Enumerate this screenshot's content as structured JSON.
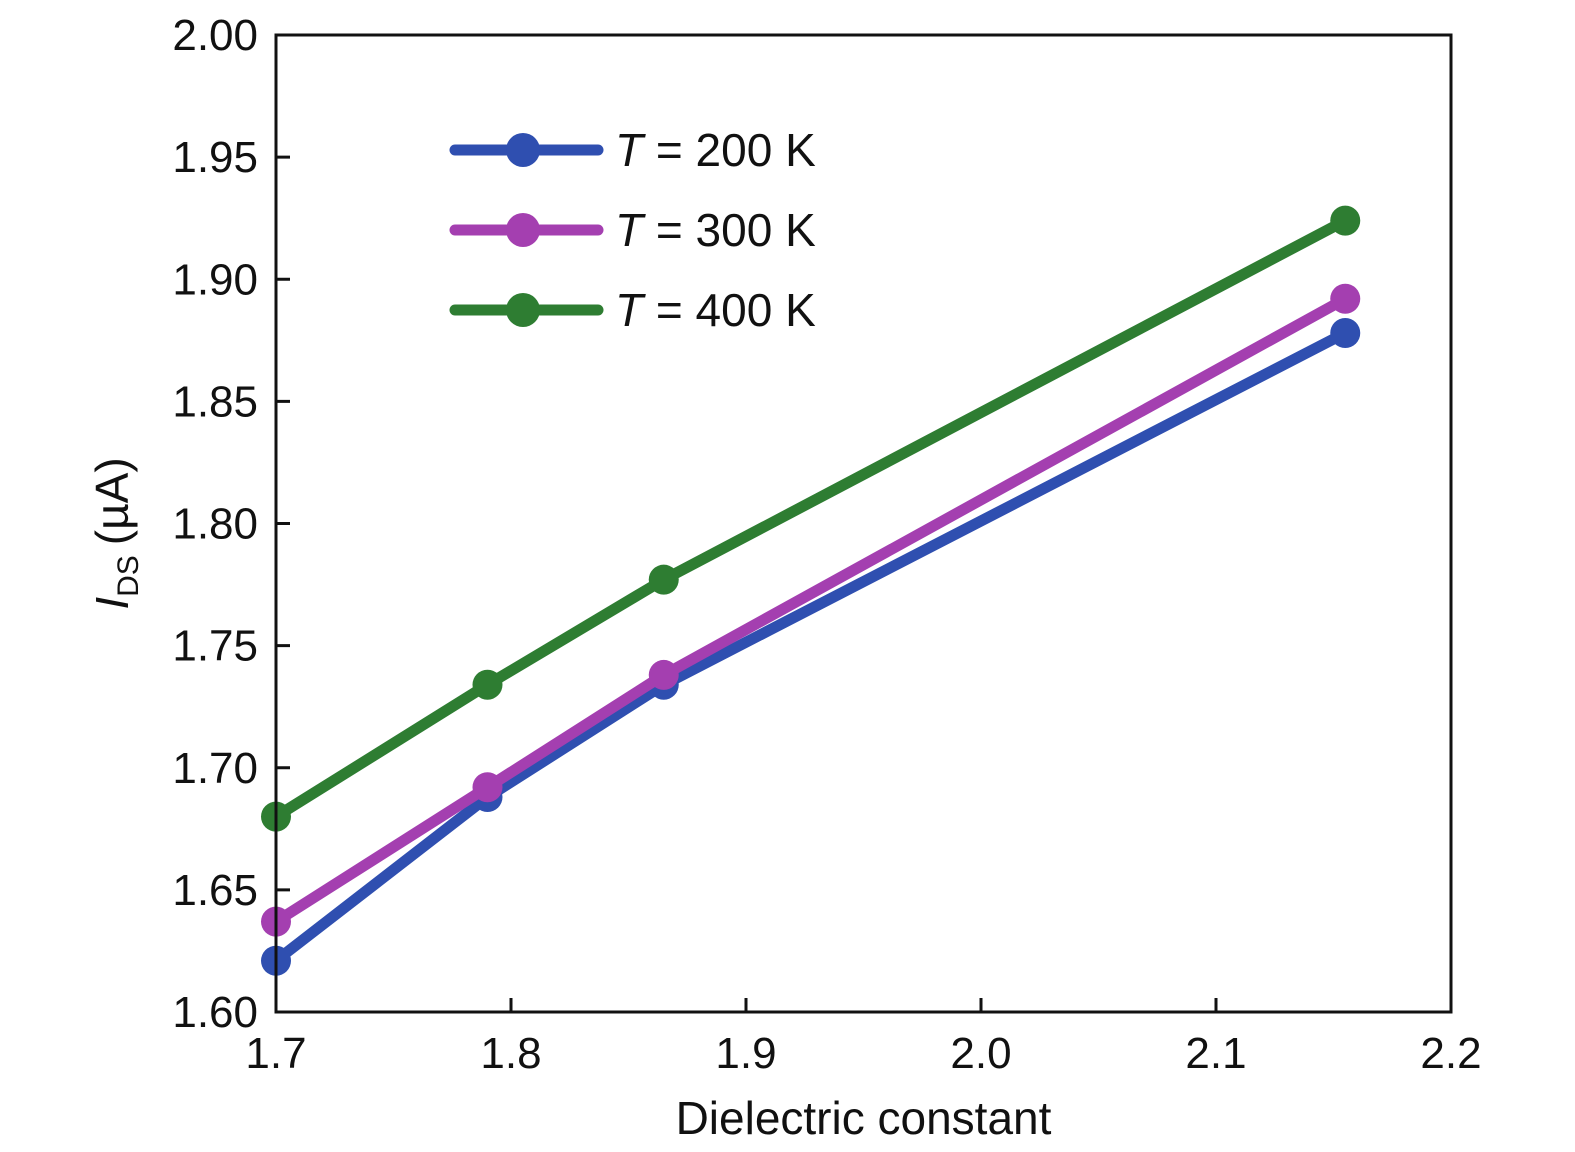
{
  "chart_data": {
    "type": "line",
    "xlabel": "Dielectric constant",
    "ylabel": {
      "symbol": "I",
      "subscript": "DS",
      "unit": "(µA)"
    },
    "xlim": [
      1.7,
      2.2
    ],
    "ylim": [
      1.6,
      2.0
    ],
    "x_ticks": [
      "1.7",
      "1.8",
      "1.9",
      "2.0",
      "2.1",
      "2.2"
    ],
    "y_ticks": [
      "1.60",
      "1.65",
      "1.70",
      "1.75",
      "1.80",
      "1.85",
      "1.90",
      "1.95",
      "2.00"
    ],
    "grid": false,
    "legend_position": "top-left",
    "x": [
      1.7,
      1.79,
      1.865,
      2.155
    ],
    "series": [
      {
        "name_symbol": "T",
        "name_rest": " = 200 K",
        "color": "#2f4fb0",
        "values": [
          1.621,
          1.688,
          1.734,
          1.878
        ]
      },
      {
        "name_symbol": "T",
        "name_rest": " = 300 K",
        "color": "#a43fb0",
        "values": [
          1.637,
          1.692,
          1.738,
          1.892
        ]
      },
      {
        "name_symbol": "T",
        "name_rest": " = 400 K",
        "color": "#2e7d32",
        "values": [
          1.68,
          1.734,
          1.777,
          1.924
        ]
      }
    ]
  }
}
